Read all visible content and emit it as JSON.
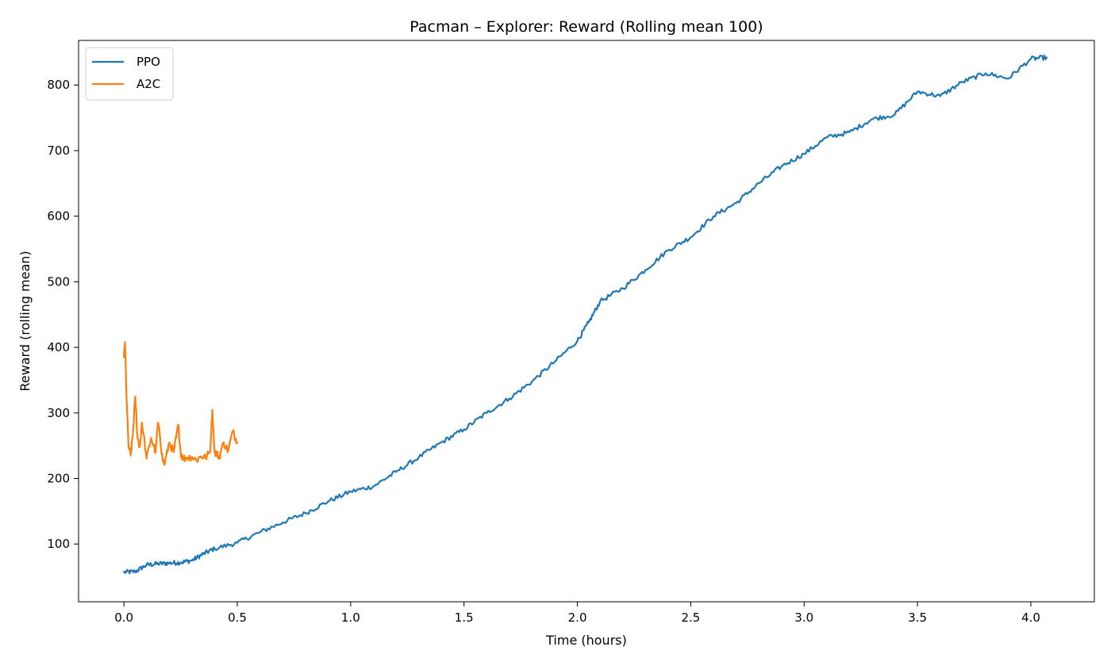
{
  "chart_data": {
    "type": "line",
    "title": "Pacman – Explorer: Reward (Rolling mean 100)",
    "xlabel": "Time (hours)",
    "ylabel": "Reward (rolling mean)",
    "xlim": [
      -0.2,
      4.28
    ],
    "ylim": [
      12,
      868
    ],
    "xticks": [
      0.0,
      0.5,
      1.0,
      1.5,
      2.0,
      2.5,
      3.0,
      3.5,
      4.0
    ],
    "xtick_labels": [
      "0.0",
      "0.5",
      "1.0",
      "1.5",
      "2.0",
      "2.5",
      "3.0",
      "3.5",
      "4.0"
    ],
    "yticks": [
      100,
      200,
      300,
      400,
      500,
      600,
      700,
      800
    ],
    "ytick_labels": [
      "100",
      "200",
      "300",
      "400",
      "500",
      "600",
      "700",
      "800"
    ],
    "grid": false,
    "legend_position": "top-left",
    "series": [
      {
        "name": "PPO",
        "color": "#1f77b4",
        "x": [
          0.0,
          0.05,
          0.1,
          0.15,
          0.2,
          0.25,
          0.3,
          0.35,
          0.4,
          0.5,
          0.6,
          0.7,
          0.8,
          0.9,
          1.0,
          1.1,
          1.2,
          1.3,
          1.4,
          1.5,
          1.6,
          1.7,
          1.8,
          1.9,
          2.0,
          2.05,
          2.1,
          2.2,
          2.3,
          2.4,
          2.5,
          2.6,
          2.7,
          2.8,
          2.9,
          3.0,
          3.1,
          3.2,
          3.3,
          3.4,
          3.5,
          3.6,
          3.7,
          3.8,
          3.9,
          4.0,
          4.07
        ],
        "values": [
          57,
          58,
          68,
          70,
          71,
          72,
          75,
          85,
          93,
          102,
          118,
          133,
          147,
          165,
          180,
          188,
          210,
          232,
          255,
          275,
          300,
          322,
          348,
          378,
          410,
          438,
          470,
          490,
          518,
          548,
          568,
          600,
          620,
          650,
          676,
          695,
          720,
          728,
          748,
          755,
          790,
          783,
          805,
          818,
          810,
          840,
          842
        ]
      },
      {
        "name": "A2C",
        "color": "#ff7f0e",
        "x": [
          0.0,
          0.005,
          0.01,
          0.02,
          0.03,
          0.04,
          0.05,
          0.06,
          0.07,
          0.08,
          0.1,
          0.12,
          0.14,
          0.15,
          0.16,
          0.17,
          0.18,
          0.2,
          0.22,
          0.23,
          0.24,
          0.25,
          0.26,
          0.28,
          0.3,
          0.32,
          0.34,
          0.36,
          0.38,
          0.39,
          0.4,
          0.41,
          0.42,
          0.44,
          0.46,
          0.48,
          0.5
        ],
        "values": [
          385,
          408,
          340,
          250,
          235,
          270,
          325,
          262,
          248,
          285,
          230,
          262,
          240,
          285,
          262,
          230,
          222,
          255,
          240,
          262,
          282,
          240,
          230,
          232,
          233,
          228,
          234,
          232,
          240,
          305,
          240,
          238,
          232,
          255,
          242,
          272,
          255
        ]
      }
    ]
  }
}
